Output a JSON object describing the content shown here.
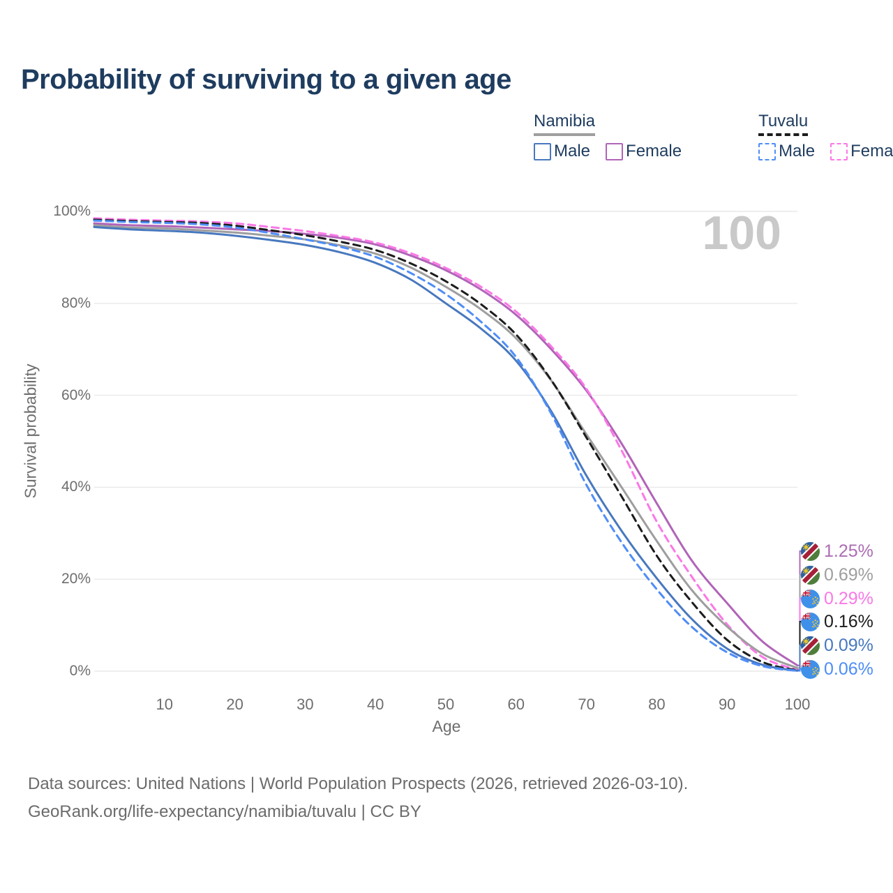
{
  "title": "Probability of surviving to a given age",
  "watermark": "100",
  "legend": {
    "groups": [
      {
        "name": "Namibia",
        "underline_style": "solid",
        "underline_color": "#9e9e9e",
        "items": [
          {
            "label": "Male",
            "color": "#4878be",
            "dashed": false
          },
          {
            "label": "Female",
            "color": "#b164b8",
            "dashed": false
          }
        ]
      },
      {
        "name": "Tuvalu",
        "underline_style": "dashed",
        "underline_color": "#1c1c1c",
        "items": [
          {
            "label": "Male",
            "color": "#4e8df7",
            "dashed": true
          },
          {
            "label": "Female",
            "color": "#fa78e6",
            "dashed": true
          }
        ]
      }
    ]
  },
  "chart_data": {
    "type": "line",
    "title": "Probability of surviving to a given age",
    "xlabel": "Age",
    "ylabel": "Survival probability",
    "xlim": [
      0,
      100
    ],
    "ylim": [
      0,
      100
    ],
    "grid": "horizontal",
    "legend_position": "top-right",
    "x_ticks": [
      10,
      20,
      30,
      40,
      50,
      60,
      70,
      80,
      90,
      100
    ],
    "y_ticks": [
      {
        "v": 100,
        "label": "100%"
      },
      {
        "v": 80,
        "label": "80%"
      },
      {
        "v": 60,
        "label": "60%"
      },
      {
        "v": 40,
        "label": "40%"
      },
      {
        "v": 20,
        "label": "20%"
      },
      {
        "v": 0,
        "label": "0%"
      }
    ],
    "x": [
      0,
      5,
      10,
      15,
      20,
      25,
      30,
      35,
      40,
      45,
      50,
      55,
      60,
      65,
      70,
      75,
      80,
      85,
      90,
      95,
      100
    ],
    "series": [
      {
        "name": "Namibia Female",
        "country": "Namibia",
        "sex": "Female",
        "color": "#b164b8",
        "dashed": false,
        "values": [
          97.4,
          97.0,
          96.8,
          96.5,
          96.1,
          95.7,
          95.1,
          94.2,
          92.8,
          90.4,
          87.2,
          83.0,
          77.5,
          70.0,
          61.0,
          49.5,
          36.5,
          24.0,
          14.8,
          6.5,
          1.25
        ]
      },
      {
        "name": "Tuvalu Female",
        "country": "Tuvalu",
        "sex": "Female",
        "color": "#fa78e6",
        "dashed": true,
        "values": [
          98.5,
          98.2,
          98.0,
          97.8,
          97.4,
          96.6,
          95.7,
          94.6,
          93.2,
          90.9,
          87.7,
          83.6,
          78.2,
          70.6,
          61.4,
          48.0,
          32.5,
          20.5,
          10.2,
          3.1,
          0.29
        ]
      },
      {
        "name": "Namibia Total",
        "country": "Namibia",
        "sex": "Both",
        "color": "#9e9e9e",
        "dashed": false,
        "values": [
          97.0,
          96.5,
          96.3,
          95.9,
          95.4,
          94.7,
          93.9,
          92.6,
          90.8,
          87.8,
          83.6,
          78.7,
          72.4,
          63.2,
          51.5,
          40.0,
          28.3,
          17.6,
          9.7,
          3.8,
          0.69
        ]
      },
      {
        "name": "Tuvalu Total",
        "country": "Tuvalu",
        "sex": "Both",
        "color": "#1c1c1c",
        "dashed": true,
        "values": [
          98.2,
          97.9,
          97.7,
          97.5,
          96.9,
          95.9,
          94.8,
          93.4,
          91.6,
          88.7,
          84.8,
          79.8,
          73.2,
          63.3,
          50.8,
          38.0,
          25.1,
          15.0,
          6.8,
          2.0,
          0.16
        ]
      },
      {
        "name": "Namibia Male",
        "country": "Namibia",
        "sex": "Male",
        "color": "#4878be",
        "dashed": false,
        "values": [
          96.6,
          96.1,
          95.8,
          95.4,
          94.7,
          93.8,
          92.7,
          91.1,
          88.8,
          85.2,
          80.0,
          74.5,
          67.5,
          56.5,
          42.5,
          30.5,
          20.2,
          11.3,
          4.9,
          1.4,
          0.09
        ]
      },
      {
        "name": "Tuvalu Male",
        "country": "Tuvalu",
        "sex": "Male",
        "color": "#4e8df7",
        "dashed": true,
        "values": [
          98.0,
          97.7,
          97.5,
          97.2,
          96.5,
          95.3,
          93.9,
          92.3,
          90.1,
          86.6,
          82.0,
          76.0,
          68.3,
          56.0,
          40.5,
          28.0,
          17.8,
          9.6,
          4.1,
          1.1,
          0.06
        ]
      }
    ],
    "end_labels": [
      {
        "series": "Namibia Female",
        "flag": "namibia",
        "value": "1.25%",
        "color": "#ad6cb4"
      },
      {
        "series": "Namibia Total",
        "flag": "namibia",
        "value": "0.69%",
        "color": "#9e9e9e"
      },
      {
        "series": "Tuvalu Female",
        "flag": "tuvalu",
        "value": "0.29%",
        "color": "#fa78e6"
      },
      {
        "series": "Tuvalu Total",
        "flag": "tuvalu",
        "value": "0.16%",
        "color": "#1c1c1c"
      },
      {
        "series": "Namibia Male",
        "flag": "namibia",
        "value": "0.09%",
        "color": "#4878be"
      },
      {
        "series": "Tuvalu Male",
        "flag": "tuvalu",
        "value": "0.06%",
        "color": "#4e8df7"
      }
    ]
  },
  "footer": {
    "line1": "Data sources: United Nations | World Population Prospects (2026, retrieved 2026-03-10).",
    "line2": "GeoRank.org/life-expectancy/namibia/tuvalu | CC BY"
  }
}
